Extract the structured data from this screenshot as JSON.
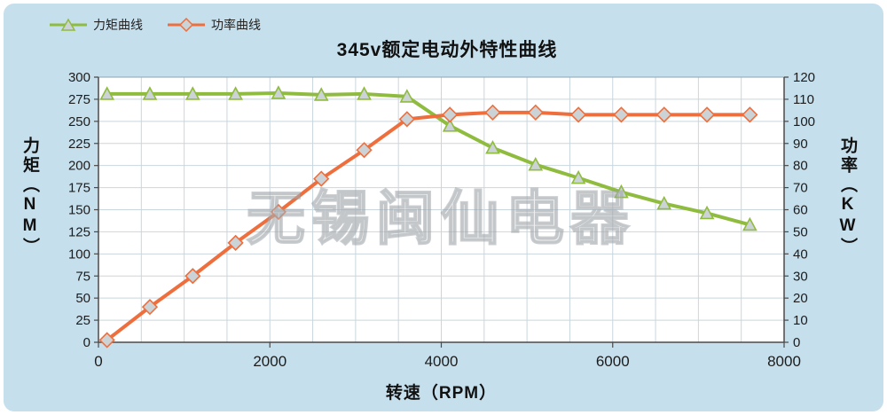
{
  "chart_data": {
    "type": "line",
    "title": "345v额定电动外特性曲线",
    "xlabel": "转速（RPM）",
    "ylabel_left": "力矩（NM）",
    "ylabel_right": "功率（KW）",
    "watermark": "无锡闽仙电器",
    "grid": true,
    "legend_position": "top-left",
    "x_range": [
      0,
      8000
    ],
    "x_ticks": [
      0,
      2000,
      4000,
      6000,
      8000
    ],
    "x_minor_grid_step": 500,
    "y_left_range": [
      0,
      300
    ],
    "y_left_ticks": [
      0,
      25,
      50,
      75,
      100,
      125,
      150,
      175,
      200,
      225,
      250,
      275,
      300
    ],
    "y_right_range": [
      0,
      120
    ],
    "y_right_ticks": [
      0,
      10,
      20,
      30,
      40,
      50,
      60,
      70,
      80,
      90,
      100,
      110,
      120
    ],
    "colors": {
      "background": "#c6dfec",
      "plot_background": "#ffffff",
      "grid": "#c9d6de",
      "frame": "#8fa6b2",
      "axis": "#4a4a4a",
      "text": "#1c1c1c",
      "torque": "#8fbc3f",
      "power": "#ee6f3d",
      "marker_fill": "#ccd3d6"
    },
    "series": [
      {
        "name": "力矩曲线",
        "axis": "left",
        "marker": "triangle",
        "color": "#8fbc3f",
        "x": [
          100,
          600,
          1100,
          1600,
          2100,
          2600,
          3100,
          3600,
          4100,
          4600,
          5100,
          5600,
          6100,
          6600,
          7100,
          7600
        ],
        "values": [
          281,
          281,
          281,
          281,
          282,
          280,
          281,
          278,
          245,
          220,
          201,
          186,
          170,
          157,
          146,
          133
        ]
      },
      {
        "name": "功率曲线",
        "axis": "right",
        "marker": "diamond",
        "color": "#ee6f3d",
        "x": [
          100,
          600,
          1100,
          1600,
          2100,
          2600,
          3100,
          3600,
          4100,
          4600,
          5100,
          5600,
          6100,
          6600,
          7100,
          7600
        ],
        "values": [
          1,
          16,
          30,
          45,
          59,
          74,
          87,
          101,
          103,
          104,
          104,
          103,
          103,
          103,
          103,
          103
        ]
      }
    ]
  }
}
